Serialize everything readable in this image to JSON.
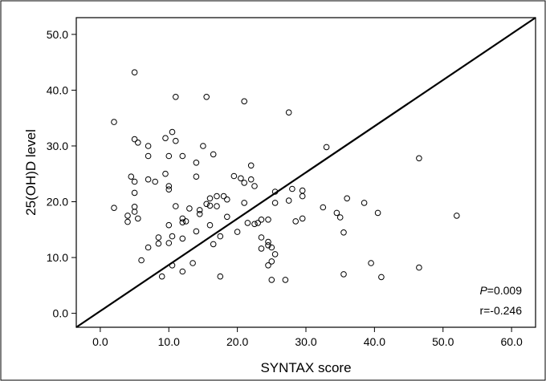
{
  "chart_data": {
    "type": "scatter",
    "title": "",
    "xlabel": "SYNTAX score",
    "ylabel": "25(OH)D level",
    "xlim": [
      -3.5,
      63.5
    ],
    "ylim": [
      -2.5,
      53
    ],
    "xticks": [
      0,
      10,
      20,
      30,
      40,
      50,
      60
    ],
    "yticks": [
      0,
      10,
      20,
      30,
      40,
      50
    ],
    "xtick_labels": [
      "0.0",
      "10.0",
      "20.0",
      "30.0",
      "40.0",
      "50.0",
      "60.0"
    ],
    "ytick_labels": [
      "0.0",
      "10.0",
      "20.0",
      "30.0",
      "40.0",
      "50.0"
    ],
    "grid": false,
    "annotations": {
      "p_label": "P",
      "p_value": "=0.009",
      "r_text": "r=-0.246"
    },
    "reference_line": [
      [
        -3.5,
        -2.5
      ],
      [
        63.5,
        53
      ]
    ],
    "points": [
      [
        5,
        43.2
      ],
      [
        2,
        34.3
      ],
      [
        2,
        18.9
      ],
      [
        4,
        17.5
      ],
      [
        4,
        16.4
      ],
      [
        4.5,
        24.5
      ],
      [
        5,
        23.6
      ],
      [
        5,
        31.2
      ],
      [
        5.5,
        30.6
      ],
      [
        5,
        21.6
      ],
      [
        5,
        19.1
      ],
      [
        5,
        18.2
      ],
      [
        5.5,
        17
      ],
      [
        6,
        9.5
      ],
      [
        7,
        30
      ],
      [
        7,
        28.2
      ],
      [
        7,
        24
      ],
      [
        7,
        11.8
      ],
      [
        8,
        23.6
      ],
      [
        8.5,
        13.6
      ],
      [
        8.5,
        12.5
      ],
      [
        9,
        6.6
      ],
      [
        9.5,
        31.4
      ],
      [
        9.5,
        25
      ],
      [
        10,
        28.2
      ],
      [
        10,
        22.8
      ],
      [
        10,
        22.2
      ],
      [
        10,
        15.8
      ],
      [
        10,
        12.6
      ],
      [
        10.5,
        32.5
      ],
      [
        10.5,
        13.8
      ],
      [
        10.5,
        8.6
      ],
      [
        11,
        38.8
      ],
      [
        11,
        30.9
      ],
      [
        11,
        19.2
      ],
      [
        12,
        28.2
      ],
      [
        12,
        17
      ],
      [
        12,
        16.3
      ],
      [
        12,
        13.4
      ],
      [
        12,
        7.5
      ],
      [
        12.5,
        16.5
      ],
      [
        13,
        18.8
      ],
      [
        13.5,
        9
      ],
      [
        14,
        27
      ],
      [
        14,
        24.5
      ],
      [
        14,
        14.7
      ],
      [
        14.5,
        18.5
      ],
      [
        14.5,
        17.8
      ],
      [
        15,
        30
      ],
      [
        15.5,
        38.8
      ],
      [
        15.5,
        19.6
      ],
      [
        16,
        20.6
      ],
      [
        16,
        19.3
      ],
      [
        16,
        15.8
      ],
      [
        16.5,
        28.5
      ],
      [
        16.5,
        12.4
      ],
      [
        17,
        21
      ],
      [
        17,
        19.2
      ],
      [
        17.5,
        13.8
      ],
      [
        17.5,
        6.6
      ],
      [
        18,
        21
      ],
      [
        18.5,
        20.4
      ],
      [
        18.5,
        17.3
      ],
      [
        19.5,
        24.6
      ],
      [
        20,
        14.6
      ],
      [
        20.5,
        24.2
      ],
      [
        21,
        38
      ],
      [
        21,
        23.4
      ],
      [
        21,
        19.8
      ],
      [
        21.5,
        16.2
      ],
      [
        22,
        26.5
      ],
      [
        22,
        24
      ],
      [
        22.5,
        22.8
      ],
      [
        22.5,
        16
      ],
      [
        23,
        16.2
      ],
      [
        23.5,
        16.8
      ],
      [
        23.5,
        13.6
      ],
      [
        23.5,
        11.6
      ],
      [
        24.5,
        16.8
      ],
      [
        24.5,
        12.8
      ],
      [
        24.5,
        12.2
      ],
      [
        24.5,
        8.6
      ],
      [
        25,
        11.8
      ],
      [
        25,
        9.3
      ],
      [
        25,
        6
      ],
      [
        25.5,
        21.8
      ],
      [
        25.5,
        19.8
      ],
      [
        25.5,
        10.6
      ],
      [
        27,
        6
      ],
      [
        27.5,
        36
      ],
      [
        27.5,
        20.2
      ],
      [
        28,
        22.3
      ],
      [
        28.5,
        16.5
      ],
      [
        29.5,
        22
      ],
      [
        29.5,
        21
      ],
      [
        29.5,
        17
      ],
      [
        32.5,
        19
      ],
      [
        33,
        29.8
      ],
      [
        34.5,
        18
      ],
      [
        35,
        17.2
      ],
      [
        35.5,
        14.5
      ],
      [
        35.5,
        7
      ],
      [
        36,
        20.6
      ],
      [
        38.5,
        19.8
      ],
      [
        39.5,
        9
      ],
      [
        40.5,
        18
      ],
      [
        41,
        6.5
      ],
      [
        46.5,
        27.8
      ],
      [
        46.5,
        8.2
      ],
      [
        52,
        17.5
      ]
    ]
  }
}
